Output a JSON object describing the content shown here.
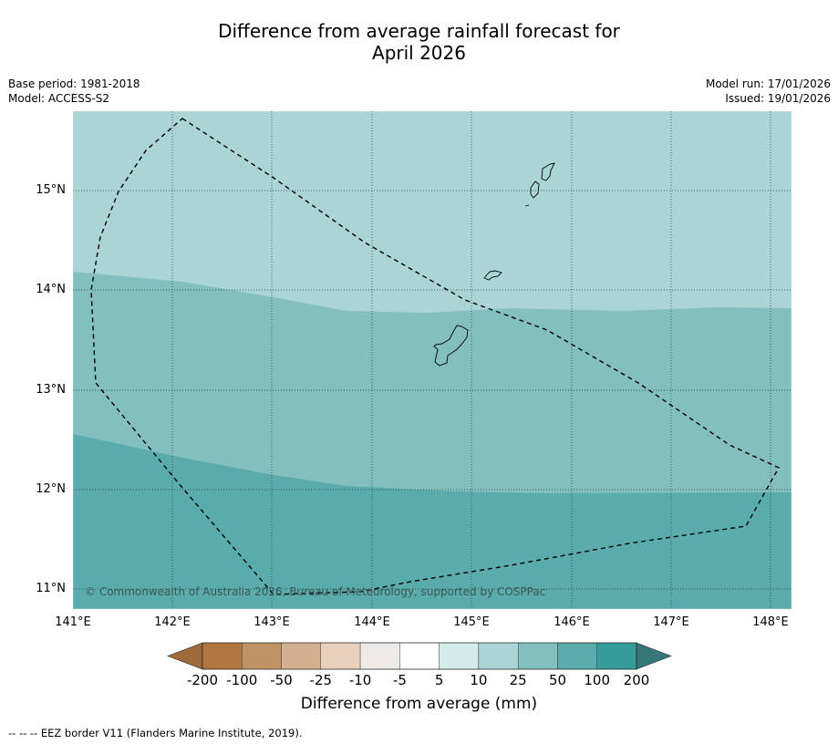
{
  "title": {
    "line1": "Difference from average rainfall forecast for",
    "line2": "April 2026"
  },
  "meta": {
    "base_period": "Base period: 1981-2018",
    "model": "Model: ACCESS-S2",
    "model_run": "Model run: 17/01/2026",
    "issued": "Issued: 19/01/2026"
  },
  "map": {
    "lat_labels": [
      "15°N",
      "14°N",
      "13°N",
      "12°N",
      "11°N"
    ],
    "lon_labels": [
      "141°E",
      "142°E",
      "143°E",
      "144°E",
      "145°E",
      "146°E",
      "147°E",
      "148°E"
    ],
    "copyright": "© Commonwealth of Australia 2026, Bureau of Meteorology, supported by COSPPac"
  },
  "colorbar": {
    "ticks": [
      "-200",
      "-100",
      "-50",
      "-25",
      "-10",
      "-5",
      "5",
      "10",
      "25",
      "50",
      "100",
      "200"
    ],
    "colors": [
      "#b07740",
      "#bf9366",
      "#d4b08f",
      "#e8d0bd",
      "#eeeae7",
      "#ffffff",
      "#d4ebe9",
      "#abd5d5",
      "#84bfbf",
      "#5aabab",
      "#369c9a"
    ],
    "extend_low_color": "#9e6a3a",
    "extend_high_color": "#367877",
    "label": "Difference from average (mm)"
  },
  "field_colors": {
    "band_10_25": "#abd5d5",
    "band_25_50": "#84bfbf",
    "band_50_100": "#5aabab"
  },
  "footnote": "--  --  -- EEZ border V11 (Flanders Marine Institute, 2019)."
}
